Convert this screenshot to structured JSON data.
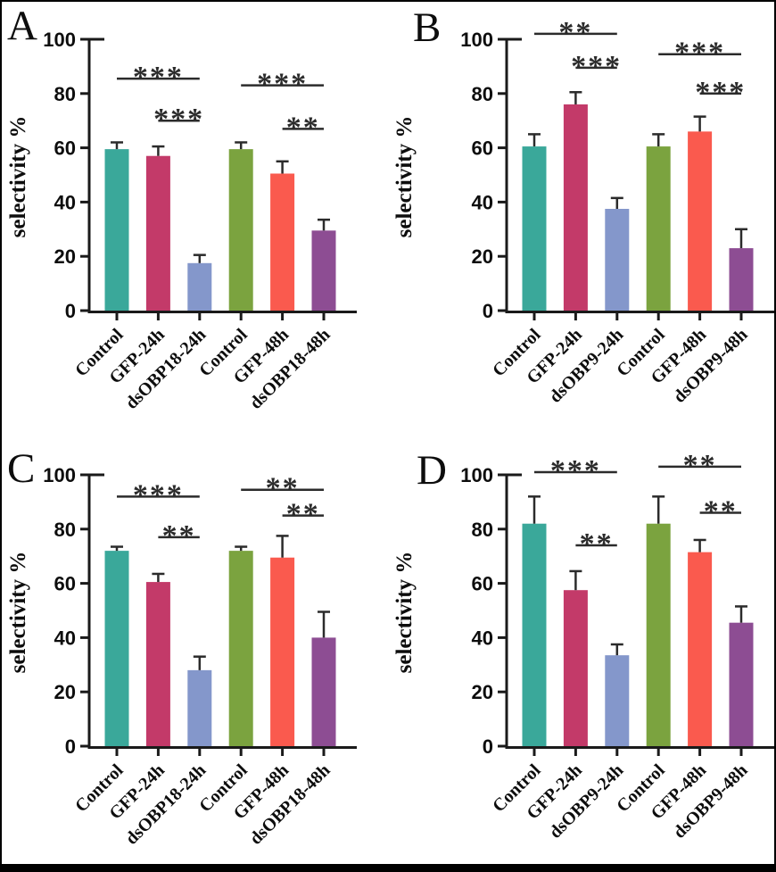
{
  "figure": {
    "background": "#ffffff",
    "border_color": "#000000",
    "axis_color": "#1a1a1a",
    "palette": {
      "teal": "#3AA89A",
      "raspberry": "#C33A69",
      "periwinkle": "#8497CB",
      "olive": "#7BA33F",
      "salmon": "#FA5A4E",
      "purple": "#8D4D93"
    }
  },
  "chart_data": [
    {
      "type": "bar",
      "panel": "A",
      "ylabel": "selectivity %",
      "ylim": [
        0,
        100
      ],
      "yticks": [
        0,
        20,
        40,
        60,
        80,
        100
      ],
      "grid": false,
      "legend": "none",
      "categories": [
        "Control",
        "GFP-24h",
        "dsOBP18-24h",
        "Control",
        "GFP-48h",
        "dsOBP18-48h"
      ],
      "values": [
        59.5,
        57,
        17.5,
        59.5,
        50.5,
        29.5
      ],
      "errors": [
        2.5,
        3.5,
        3,
        2.5,
        4.5,
        4
      ],
      "bar_colors": [
        "teal",
        "raspberry",
        "periwinkle",
        "olive",
        "salmon",
        "purple"
      ],
      "significance": [
        {
          "from": 0,
          "to": 2,
          "line_y": 85.5,
          "stars": "***"
        },
        {
          "from": 1,
          "to": 2,
          "line_y": 70,
          "stars": "***"
        },
        {
          "from": 3,
          "to": 5,
          "line_y": 83,
          "stars": "***"
        },
        {
          "from": 4,
          "to": 5,
          "line_y": 67,
          "stars": "**"
        }
      ]
    },
    {
      "type": "bar",
      "panel": "B",
      "ylabel": "selectivity %",
      "ylim": [
        0,
        100
      ],
      "yticks": [
        0,
        20,
        40,
        60,
        80,
        100
      ],
      "grid": false,
      "legend": "none",
      "categories": [
        "Control",
        "GFP-24h",
        "dsOBP9-24h",
        "Control",
        "GFP-48h",
        "dsOBP9-48h"
      ],
      "values": [
        60.5,
        76,
        37.5,
        60.5,
        66,
        23
      ],
      "errors": [
        4.5,
        4.5,
        4,
        4.5,
        5.5,
        7
      ],
      "bar_colors": [
        "teal",
        "raspberry",
        "periwinkle",
        "olive",
        "salmon",
        "purple"
      ],
      "significance": [
        {
          "from": 0,
          "to": 2,
          "line_y": 102,
          "stars": "**"
        },
        {
          "from": 1,
          "to": 2,
          "line_y": 89.5,
          "stars": "***"
        },
        {
          "from": 3,
          "to": 5,
          "line_y": 94.5,
          "stars": "***"
        },
        {
          "from": 4,
          "to": 5,
          "line_y": 80,
          "stars": "***"
        }
      ]
    },
    {
      "type": "bar",
      "panel": "C",
      "ylabel": "selectivity %",
      "ylim": [
        0,
        100
      ],
      "yticks": [
        0,
        20,
        40,
        60,
        80,
        100
      ],
      "grid": false,
      "legend": "none",
      "categories": [
        "Control",
        "GFP-24h",
        "dsOBP18-24h",
        "Control",
        "GFP-48h",
        "dsOBP18-48h"
      ],
      "values": [
        72,
        60.5,
        28,
        72,
        69.5,
        40
      ],
      "errors": [
        1.5,
        3,
        5,
        1.5,
        8,
        9.5
      ],
      "bar_colors": [
        "teal",
        "raspberry",
        "periwinkle",
        "olive",
        "salmon",
        "purple"
      ],
      "significance": [
        {
          "from": 0,
          "to": 2,
          "line_y": 92,
          "stars": "***"
        },
        {
          "from": 1,
          "to": 2,
          "line_y": 77,
          "stars": "**"
        },
        {
          "from": 3,
          "to": 5,
          "line_y": 94.5,
          "stars": "**"
        },
        {
          "from": 4,
          "to": 5,
          "line_y": 85,
          "stars": "**"
        }
      ]
    },
    {
      "type": "bar",
      "panel": "D",
      "ylabel": "selectivity %",
      "ylim": [
        0,
        100
      ],
      "yticks": [
        0,
        20,
        40,
        60,
        80,
        100
      ],
      "grid": false,
      "legend": "none",
      "categories": [
        "Control",
        "GFP-24h",
        "dsOBP9-24h",
        "Control",
        "GFP-48h",
        "dsOBP9-48h"
      ],
      "values": [
        82,
        57.5,
        33.5,
        82,
        71.5,
        45.5
      ],
      "errors": [
        10,
        7,
        4,
        10,
        4.5,
        6
      ],
      "bar_colors": [
        "teal",
        "raspberry",
        "periwinkle",
        "olive",
        "salmon",
        "purple"
      ],
      "significance": [
        {
          "from": 0,
          "to": 2,
          "line_y": 101,
          "stars": "***"
        },
        {
          "from": 1,
          "to": 2,
          "line_y": 74,
          "stars": "**"
        },
        {
          "from": 3,
          "to": 5,
          "line_y": 103,
          "stars": "**"
        },
        {
          "from": 4,
          "to": 5,
          "line_y": 86,
          "stars": "**"
        }
      ]
    }
  ]
}
